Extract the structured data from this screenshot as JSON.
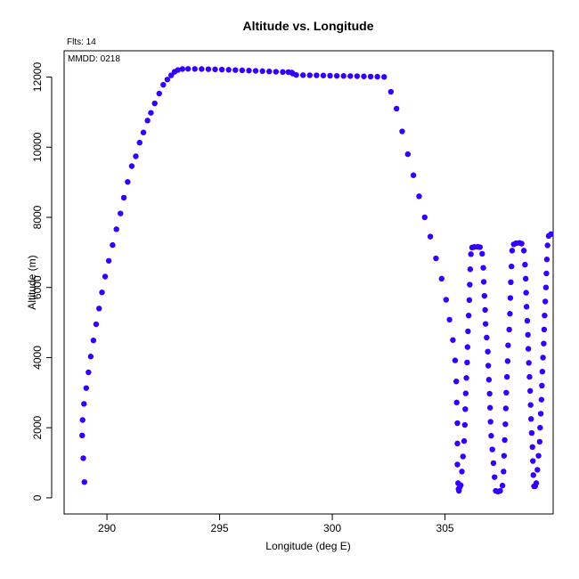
{
  "chart_data": {
    "type": "scatter",
    "title": "Altitude vs. Longitude",
    "xlabel": "Longitude (deg E)",
    "ylabel": "Altitude (m)",
    "annotations": {
      "flights": "Flts: 14",
      "date": "MMDD: 0218"
    },
    "xlim": [
      288.1,
      309.8
    ],
    "ylim": [
      -460,
      12750
    ],
    "x_ticks": [
      290,
      295,
      300,
      305
    ],
    "y_ticks": [
      0,
      2000,
      4000,
      6000,
      8000,
      10000,
      12000
    ],
    "grid": false,
    "marker_color": "#3300ff",
    "series": [
      {
        "values": [
          [
            289.0,
            450
          ],
          [
            288.95,
            1130
          ],
          [
            288.9,
            1780
          ],
          [
            288.92,
            2220
          ],
          [
            288.98,
            2680
          ],
          [
            289.08,
            3130
          ],
          [
            289.18,
            3580
          ],
          [
            289.28,
            4030
          ],
          [
            289.4,
            4490
          ],
          [
            289.52,
            4950
          ],
          [
            289.65,
            5400
          ],
          [
            289.78,
            5860
          ],
          [
            289.92,
            6310
          ],
          [
            290.08,
            6760
          ],
          [
            290.25,
            7210
          ],
          [
            290.42,
            7660
          ],
          [
            290.6,
            8110
          ],
          [
            290.75,
            8560
          ],
          [
            290.92,
            9010
          ],
          [
            291.1,
            9460
          ],
          [
            291.28,
            9740
          ],
          [
            291.45,
            10130
          ],
          [
            291.62,
            10420
          ],
          [
            291.8,
            10760
          ],
          [
            291.95,
            10980
          ],
          [
            292.12,
            11250
          ],
          [
            292.32,
            11530
          ],
          [
            292.5,
            11780
          ],
          [
            292.68,
            11930
          ],
          [
            292.85,
            12050
          ],
          [
            293.0,
            12150
          ],
          [
            293.15,
            12200
          ],
          [
            293.35,
            12230
          ],
          [
            293.6,
            12235
          ],
          [
            293.9,
            12232
          ],
          [
            294.2,
            12230
          ],
          [
            294.5,
            12225
          ],
          [
            294.8,
            12220
          ],
          [
            295.1,
            12215
          ],
          [
            295.4,
            12208
          ],
          [
            295.7,
            12200
          ],
          [
            296.0,
            12192
          ],
          [
            296.3,
            12185
          ],
          [
            296.6,
            12178
          ],
          [
            296.9,
            12170
          ],
          [
            297.2,
            12160
          ],
          [
            297.5,
            12152
          ],
          [
            297.8,
            12145
          ],
          [
            298.05,
            12140
          ],
          [
            298.2,
            12130
          ],
          [
            298.25,
            12100
          ],
          [
            298.4,
            12060
          ],
          [
            298.7,
            12055
          ],
          [
            299.0,
            12052
          ],
          [
            299.3,
            12050
          ],
          [
            299.6,
            12045
          ],
          [
            299.9,
            12040
          ],
          [
            300.2,
            12035
          ],
          [
            300.5,
            12032
          ],
          [
            300.8,
            12028
          ],
          [
            301.1,
            12025
          ],
          [
            301.4,
            12020
          ],
          [
            301.7,
            12015
          ],
          [
            302.0,
            12010
          ],
          [
            302.3,
            12005
          ],
          [
            302.6,
            11580
          ],
          [
            302.85,
            11100
          ],
          [
            303.1,
            10450
          ],
          [
            303.35,
            9800
          ],
          [
            303.6,
            9200
          ],
          [
            303.85,
            8600
          ],
          [
            304.1,
            8000
          ],
          [
            304.35,
            7450
          ],
          [
            304.6,
            6830
          ],
          [
            304.85,
            6250
          ],
          [
            305.05,
            5650
          ],
          [
            305.2,
            5080
          ],
          [
            305.35,
            4500
          ],
          [
            305.45,
            3920
          ],
          [
            305.5,
            3320
          ],
          [
            305.52,
            2720
          ],
          [
            305.55,
            2130
          ],
          [
            305.55,
            1550
          ],
          [
            305.55,
            950
          ],
          [
            305.58,
            420
          ],
          [
            305.6,
            250
          ],
          [
            305.62,
            200
          ],
          [
            305.65,
            300
          ],
          [
            305.7,
            360
          ],
          [
            305.75,
            750
          ],
          [
            305.8,
            1180
          ],
          [
            305.85,
            1620
          ],
          [
            305.88,
            2080
          ],
          [
            305.9,
            2530
          ],
          [
            305.92,
            2980
          ],
          [
            305.95,
            3420
          ],
          [
            305.98,
            3860
          ],
          [
            306.0,
            4300
          ],
          [
            306.02,
            4750
          ],
          [
            306.05,
            5200
          ],
          [
            306.08,
            5640
          ],
          [
            306.1,
            6080
          ],
          [
            306.12,
            6520
          ],
          [
            306.15,
            6950
          ],
          [
            306.2,
            7140
          ],
          [
            306.3,
            7155
          ],
          [
            306.45,
            7160
          ],
          [
            306.55,
            7150
          ],
          [
            306.65,
            6960
          ],
          [
            306.7,
            6560
          ],
          [
            306.72,
            6160
          ],
          [
            306.75,
            5760
          ],
          [
            306.78,
            5360
          ],
          [
            306.8,
            4960
          ],
          [
            306.85,
            4570
          ],
          [
            306.9,
            4170
          ],
          [
            306.92,
            3770
          ],
          [
            306.95,
            3370
          ],
          [
            306.98,
            2970
          ],
          [
            307.0,
            2570
          ],
          [
            307.02,
            2170
          ],
          [
            307.05,
            1770
          ],
          [
            307.1,
            1380
          ],
          [
            307.15,
            990
          ],
          [
            307.2,
            590
          ],
          [
            307.25,
            200
          ],
          [
            307.35,
            180
          ],
          [
            307.45,
            200
          ],
          [
            307.55,
            350
          ],
          [
            307.6,
            750
          ],
          [
            307.62,
            1200
          ],
          [
            307.65,
            1650
          ],
          [
            307.68,
            2100
          ],
          [
            307.7,
            2550
          ],
          [
            307.72,
            3000
          ],
          [
            307.75,
            3450
          ],
          [
            307.78,
            3900
          ],
          [
            307.8,
            4350
          ],
          [
            307.85,
            4800
          ],
          [
            307.88,
            5250
          ],
          [
            307.9,
            5700
          ],
          [
            307.92,
            6150
          ],
          [
            307.95,
            6600
          ],
          [
            307.98,
            7050
          ],
          [
            308.05,
            7230
          ],
          [
            308.15,
            7260
          ],
          [
            308.3,
            7270
          ],
          [
            308.4,
            7250
          ],
          [
            308.5,
            7050
          ],
          [
            308.55,
            6650
          ],
          [
            308.58,
            6250
          ],
          [
            308.6,
            5850
          ],
          [
            308.62,
            5450
          ],
          [
            308.65,
            5050
          ],
          [
            308.68,
            4650
          ],
          [
            308.7,
            4250
          ],
          [
            308.72,
            3850
          ],
          [
            308.75,
            3450
          ],
          [
            308.78,
            3050
          ],
          [
            308.8,
            2650
          ],
          [
            308.82,
            2250
          ],
          [
            308.85,
            1850
          ],
          [
            308.88,
            1450
          ],
          [
            308.9,
            1050
          ],
          [
            308.92,
            650
          ],
          [
            308.95,
            330
          ],
          [
            309.0,
            330
          ],
          [
            309.05,
            420
          ],
          [
            309.1,
            800
          ],
          [
            309.15,
            1200
          ],
          [
            309.2,
            1600
          ],
          [
            309.22,
            2000
          ],
          [
            309.25,
            2400
          ],
          [
            309.28,
            2800
          ],
          [
            309.3,
            3200
          ],
          [
            309.32,
            3600
          ],
          [
            309.35,
            4000
          ],
          [
            309.38,
            4400
          ],
          [
            309.4,
            4800
          ],
          [
            309.42,
            5200
          ],
          [
            309.45,
            5600
          ],
          [
            309.48,
            6000
          ],
          [
            309.5,
            6400
          ],
          [
            309.52,
            6800
          ],
          [
            309.55,
            7200
          ],
          [
            309.6,
            7470
          ],
          [
            309.7,
            7520
          ]
        ]
      }
    ]
  }
}
